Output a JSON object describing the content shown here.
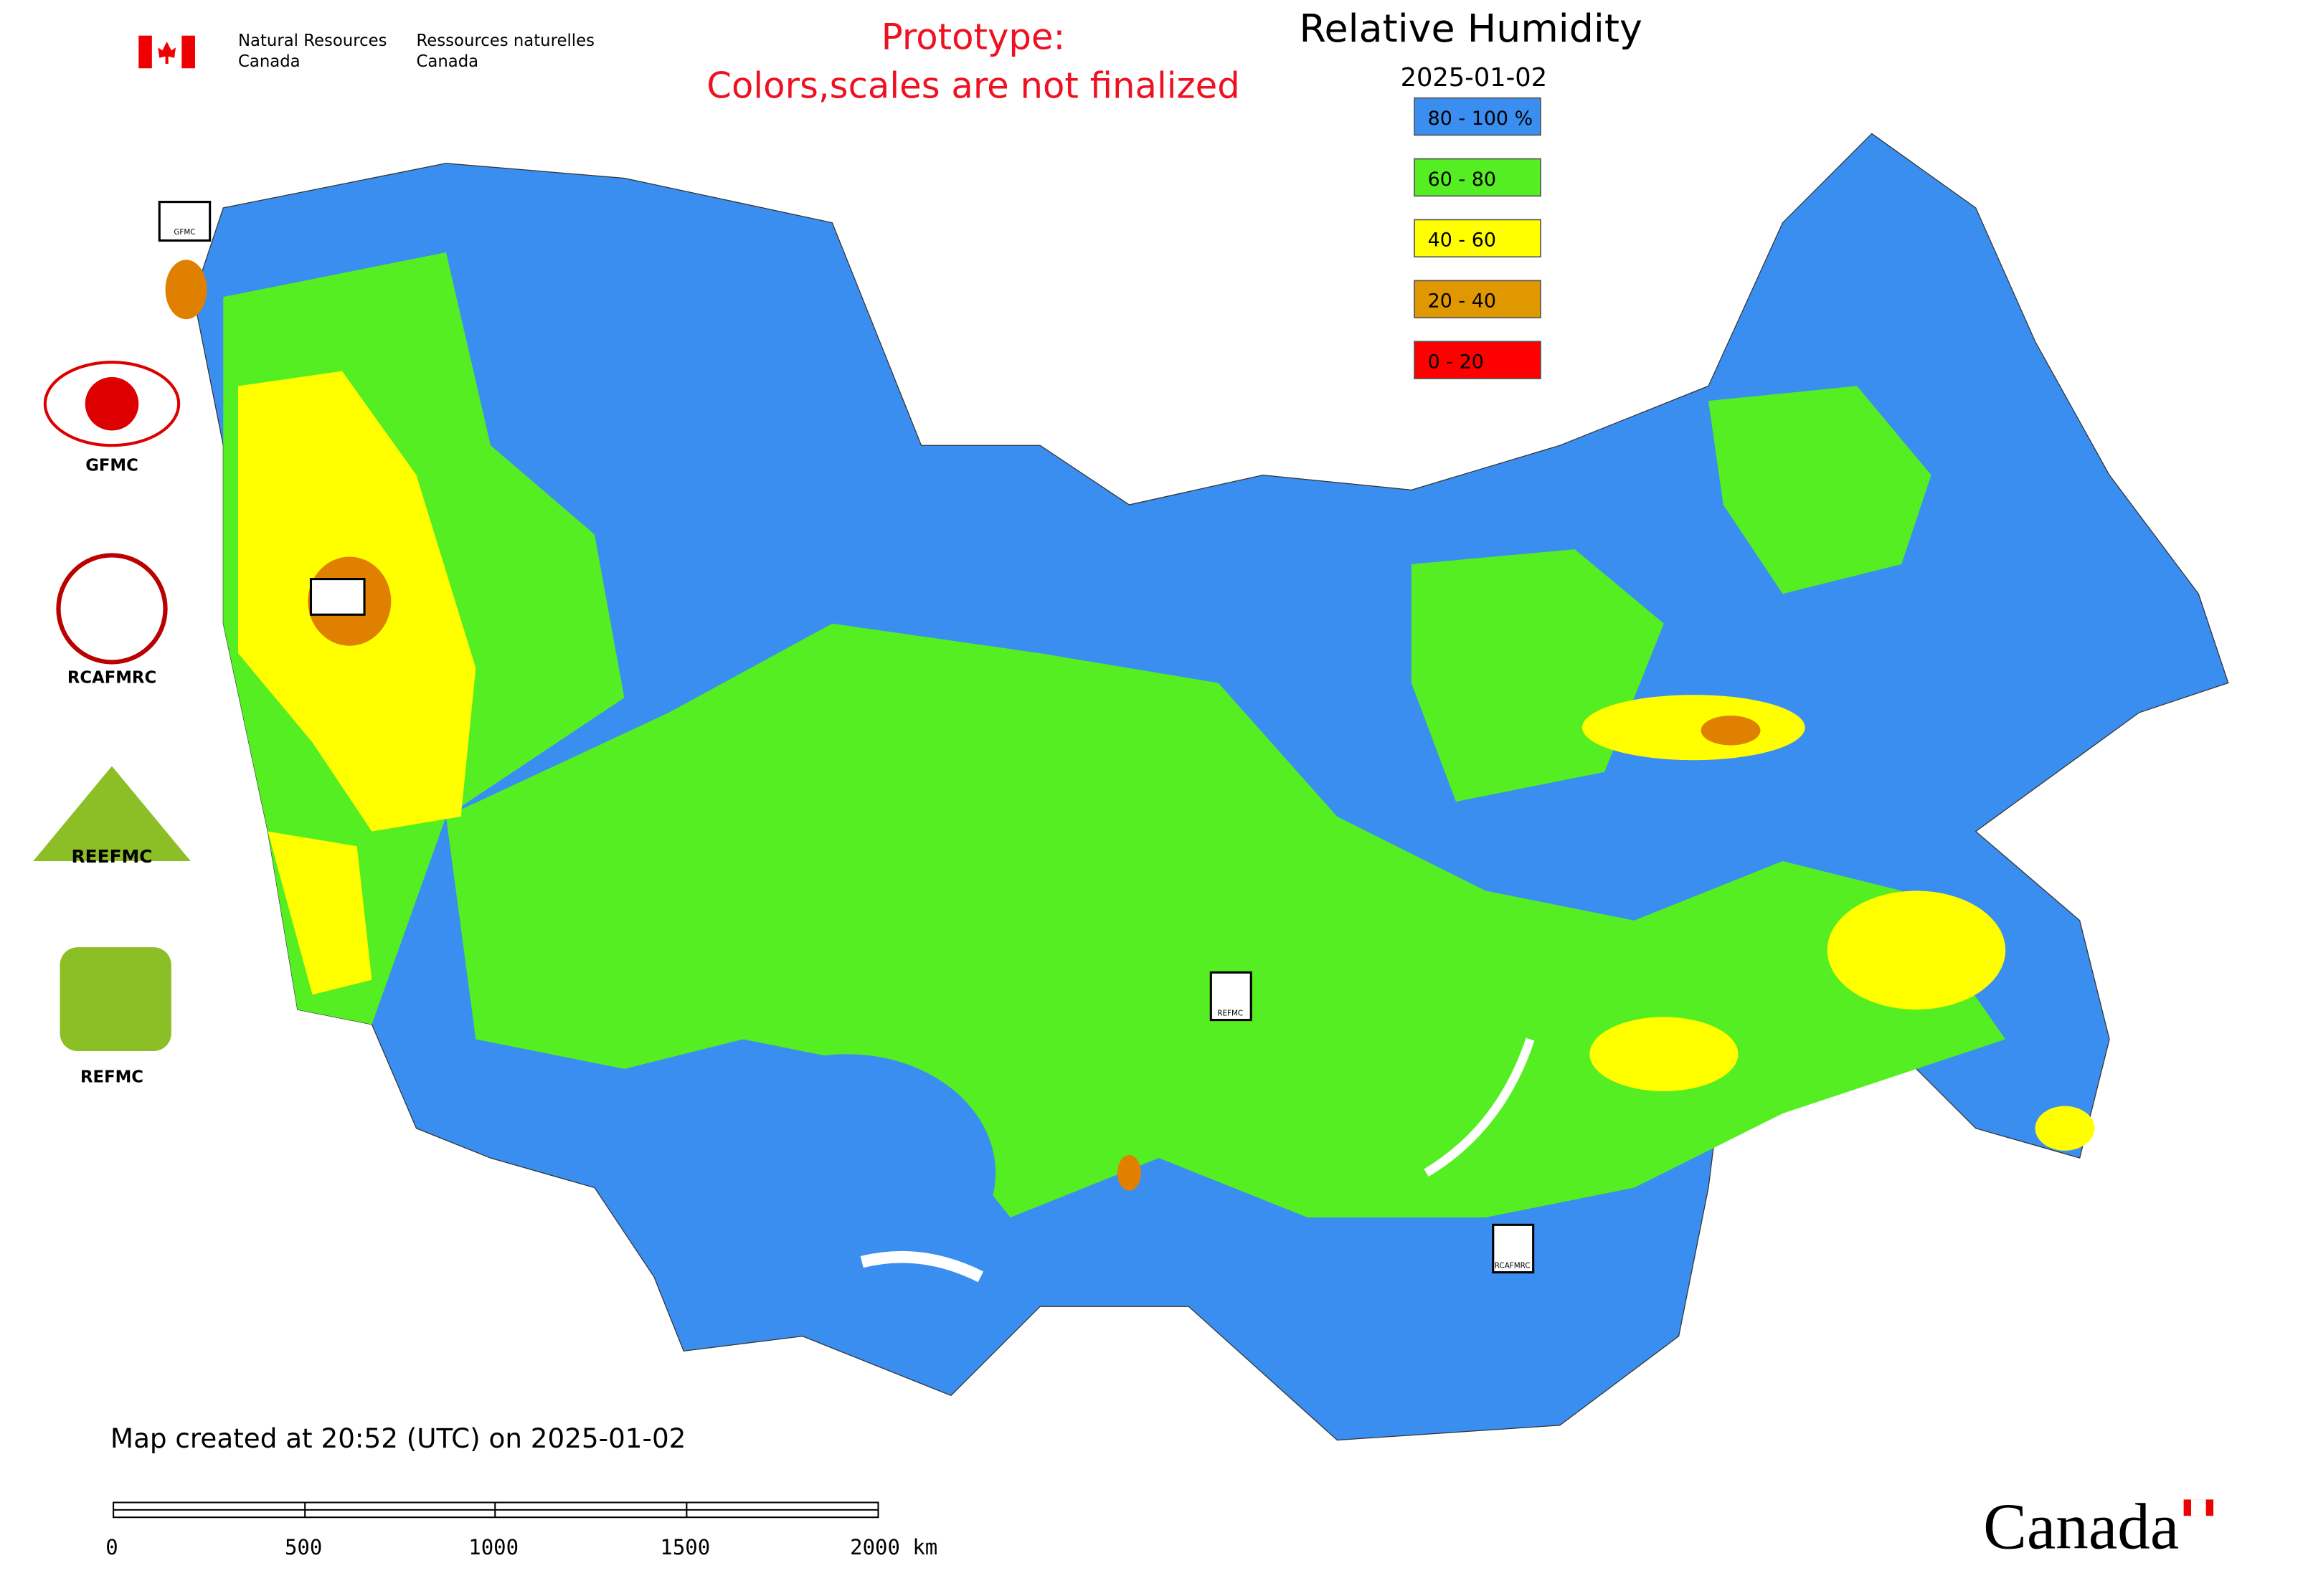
{
  "header": {
    "department_en": [
      "Natural Resources",
      "Canada"
    ],
    "department_fr": [
      "Ressources naturelles",
      "Canada"
    ],
    "prototype": [
      "Prototype:",
      "Colors,scales are not finalized"
    ],
    "title": "Relative Humidity",
    "date": "2025-01-02"
  },
  "legend": [
    {
      "label": "80 - 100 %",
      "color": "#3a8ef0"
    },
    {
      "label": "60 - 80",
      "color": "#55ee22"
    },
    {
      "label": "40 - 60",
      "color": "#ffff00"
    },
    {
      "label": "20 - 40",
      "color": "#e09800"
    },
    {
      "label": "0 - 20",
      "color": "#ff0000"
    }
  ],
  "logos": [
    "GFMC",
    "RCAFMRC",
    "REEFMC",
    "REFMC"
  ],
  "markers": [
    "GFMC",
    "REFMC",
    "RCAFMRC"
  ],
  "footer": {
    "created": "Map created at 20:52 (UTC) on 2025-01-02",
    "scale": [
      "0",
      "500",
      "1000",
      "1500",
      "2000 km"
    ],
    "wordmark": "Canada"
  }
}
